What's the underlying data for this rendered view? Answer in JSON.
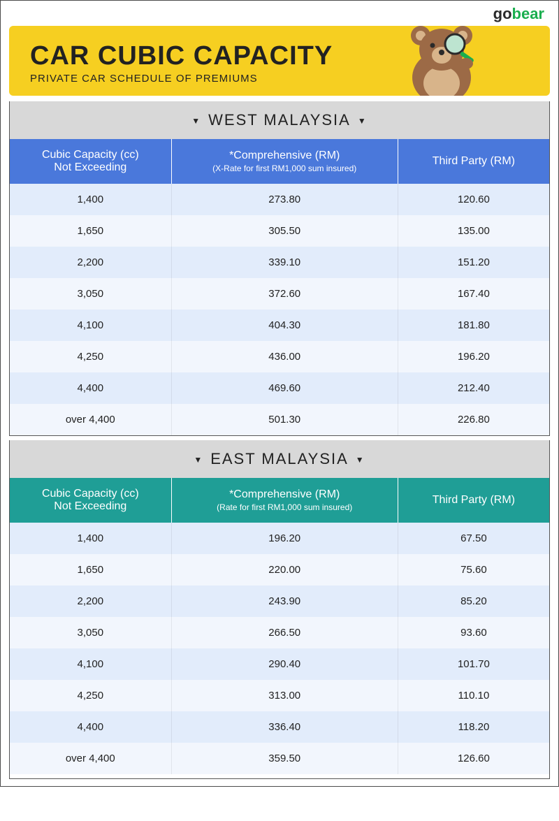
{
  "logo": {
    "part1": "go",
    "part2": "bear"
  },
  "hero": {
    "title": "CAR CUBIC CAPACITY",
    "subtitle": "PRIVATE CAR SCHEDULE OF PREMIUMS",
    "bg_color": "#f6cf21"
  },
  "section_label_bg": "#d8d8d8",
  "sections": [
    {
      "label": "WEST MALAYSIA",
      "header_bg": "#4a78db",
      "row_alt_a": "#e2ecfb",
      "row_alt_b": "#f2f6fd",
      "columns": [
        {
          "main": "Cubic Capacity (cc)\nNot Exceeding",
          "note": ""
        },
        {
          "main": "*Comprehensive (RM)",
          "note": "(X-Rate for first RM1,000 sum insured)"
        },
        {
          "main": "Third Party (RM)",
          "note": ""
        }
      ],
      "rows": [
        [
          "1,400",
          "273.80",
          "120.60"
        ],
        [
          "1,650",
          "305.50",
          "135.00"
        ],
        [
          "2,200",
          "339.10",
          "151.20"
        ],
        [
          "3,050",
          "372.60",
          "167.40"
        ],
        [
          "4,100",
          "404.30",
          "181.80"
        ],
        [
          "4,250",
          "436.00",
          "196.20"
        ],
        [
          "4,400",
          "469.60",
          "212.40"
        ],
        [
          "over 4,400",
          "501.30",
          "226.80"
        ]
      ]
    },
    {
      "label": "EAST MALAYSIA",
      "header_bg": "#1f9e96",
      "row_alt_a": "#e2ecfb",
      "row_alt_b": "#f2f6fd",
      "columns": [
        {
          "main": "Cubic Capacity (cc)\nNot Exceeding",
          "note": ""
        },
        {
          "main": "*Comprehensive (RM)",
          "note": "(Rate for first RM1,000 sum insured)"
        },
        {
          "main": "Third Party (RM)",
          "note": ""
        }
      ],
      "rows": [
        [
          "1,400",
          "196.20",
          "67.50"
        ],
        [
          "1,650",
          "220.00",
          "75.60"
        ],
        [
          "2,200",
          "243.90",
          "85.20"
        ],
        [
          "3,050",
          "266.50",
          "93.60"
        ],
        [
          "4,100",
          "290.40",
          "101.70"
        ],
        [
          "4,250",
          "313.00",
          "110.10"
        ],
        [
          "4,400",
          "336.40",
          "118.20"
        ],
        [
          "over 4,400",
          "359.50",
          "126.60"
        ]
      ]
    }
  ]
}
